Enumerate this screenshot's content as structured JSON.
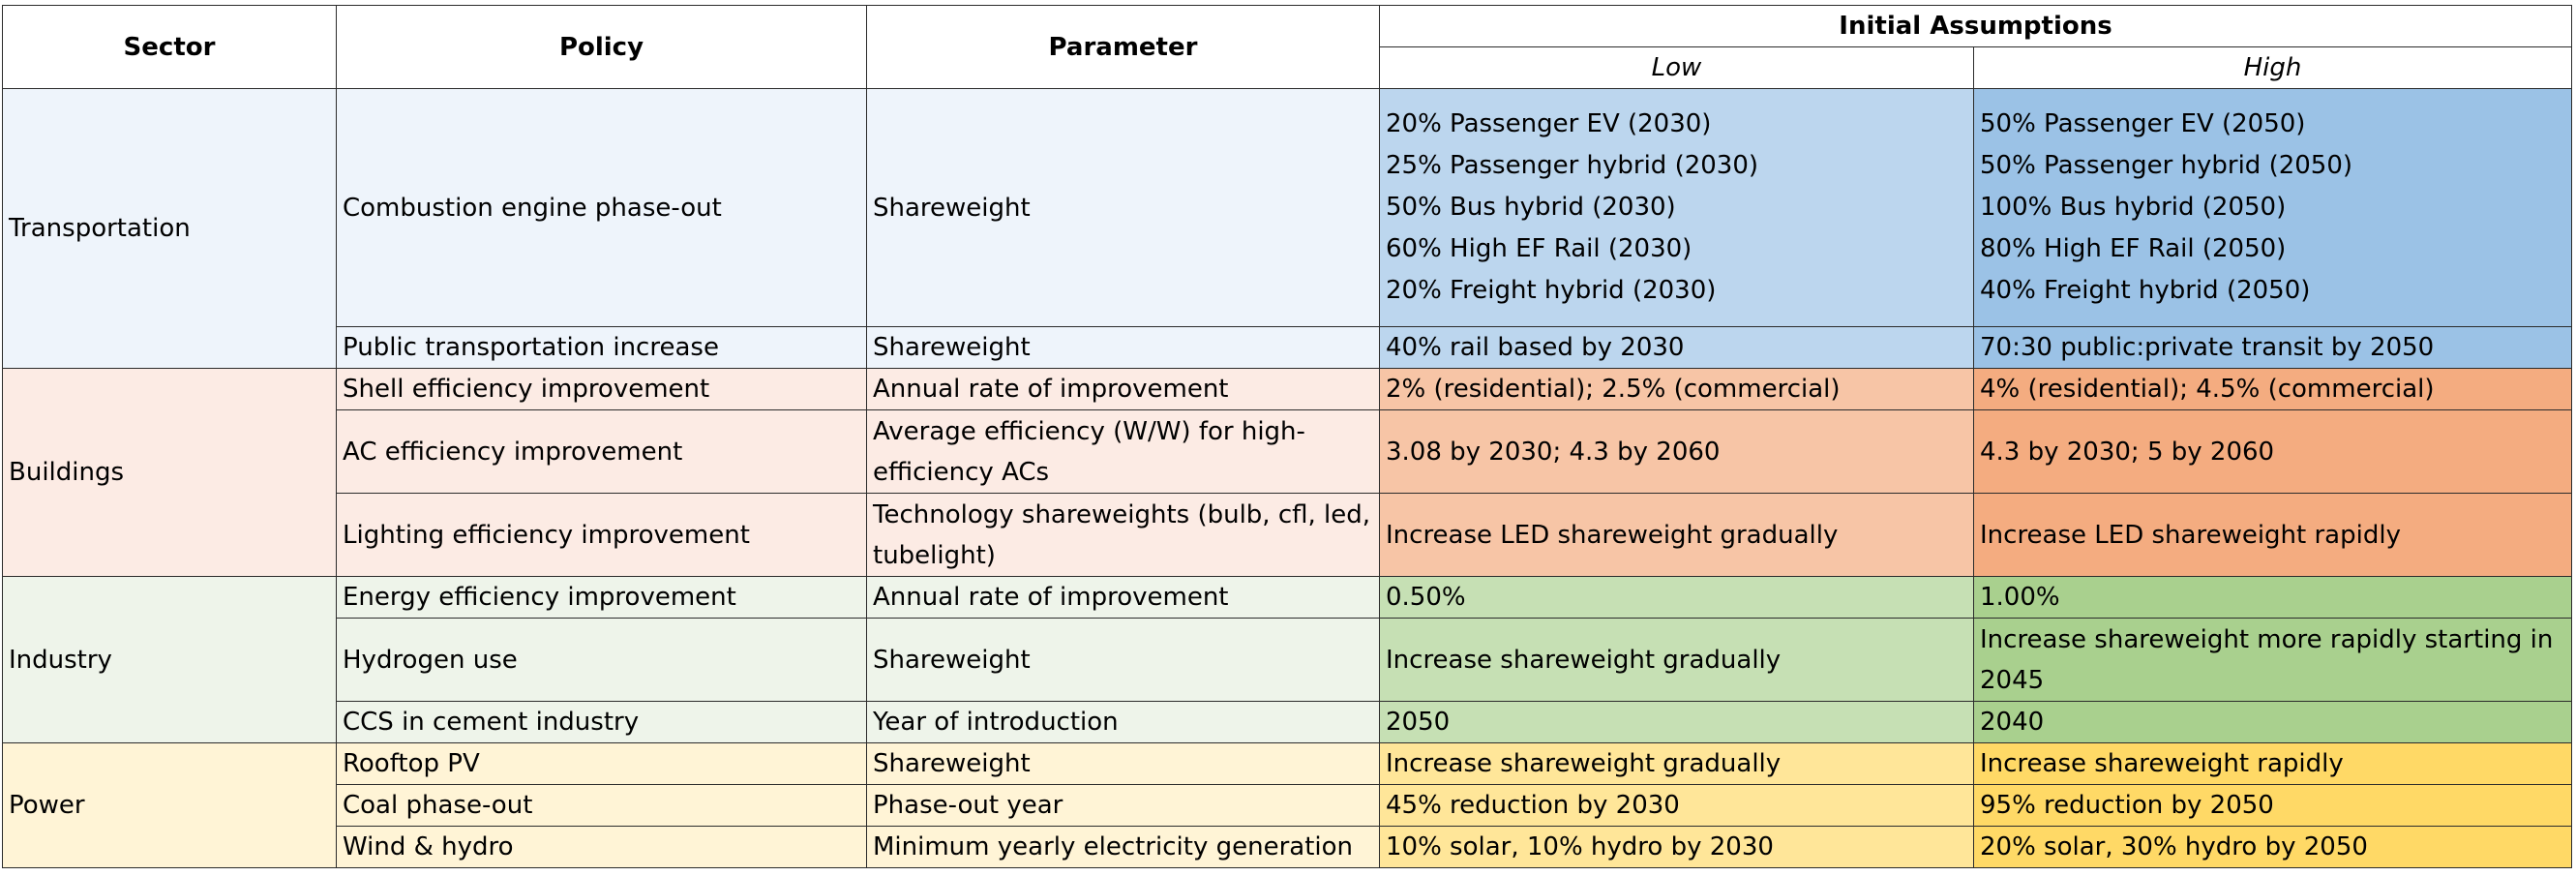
{
  "headers": {
    "sector": "Sector",
    "policy": "Policy",
    "parameter": "Parameter",
    "initial_assumptions": "Initial Assumptions",
    "low": "Low",
    "high": "High"
  },
  "sectors": {
    "transportation": "Transportation",
    "buildings": "Buildings",
    "industry": "Industry",
    "power": "Power"
  },
  "rows": [
    {
      "policy": "Combustion engine phase-out",
      "parameter": "Shareweight",
      "low": [
        "20% Passenger EV (2030)",
        "25% Passenger hybrid (2030)",
        "50% Bus hybrid (2030)",
        "60% High EF Rail (2030)",
        "20% Freight hybrid (2030)"
      ],
      "high": [
        "50% Passenger EV (2050)",
        "50% Passenger hybrid (2050)",
        "100% Bus hybrid (2050)",
        "80% High EF Rail (2050)",
        "40% Freight hybrid (2050)"
      ]
    },
    {
      "policy": "Public transportation increase",
      "parameter": "Shareweight",
      "low": "40% rail based by 2030",
      "high": "70:30 public:private transit by 2050"
    },
    {
      "policy": "Shell efficiency improvement",
      "parameter": "Annual rate of improvement",
      "low": "2% (residential); 2.5% (commercial)",
      "high": "4% (residential); 4.5% (commercial)"
    },
    {
      "policy": "AC efficiency improvement",
      "parameter": "Average efficiency (W/W) for high-efficiency ACs",
      "low": "3.08 by 2030; 4.3 by 2060",
      "high": "4.3 by 2030; 5 by 2060"
    },
    {
      "policy": "Lighting efficiency improvement",
      "parameter": "Technology shareweights (bulb, cfl, led, tubelight)",
      "low": "Increase LED shareweight gradually",
      "high": "Increase LED shareweight rapidly"
    },
    {
      "policy": "Energy efficiency improvement",
      "parameter": "Annual rate of improvement",
      "low": "0.50%",
      "high": "1.00%"
    },
    {
      "policy": "Hydrogen use",
      "parameter": "Shareweight",
      "low": "Increase shareweight gradually",
      "high": "Increase shareweight more rapidly starting in 2045"
    },
    {
      "policy": "CCS in cement industry",
      "parameter": "Year of introduction",
      "low": "2050",
      "high": "2040"
    },
    {
      "policy": "Rooftop PV",
      "parameter": "Shareweight",
      "low": "Increase shareweight gradually",
      "high": "Increase shareweight rapidly"
    },
    {
      "policy": "Coal phase-out",
      "parameter": "Phase-out year",
      "low": "45% reduction by 2030",
      "high": "95% reduction by 2050"
    },
    {
      "policy": "Wind & hydro",
      "parameter": "Minimum yearly electricity generation",
      "low": "10% solar, 10% hydro by 2030",
      "high": "20% solar, 30% hydro by 2050"
    }
  ]
}
